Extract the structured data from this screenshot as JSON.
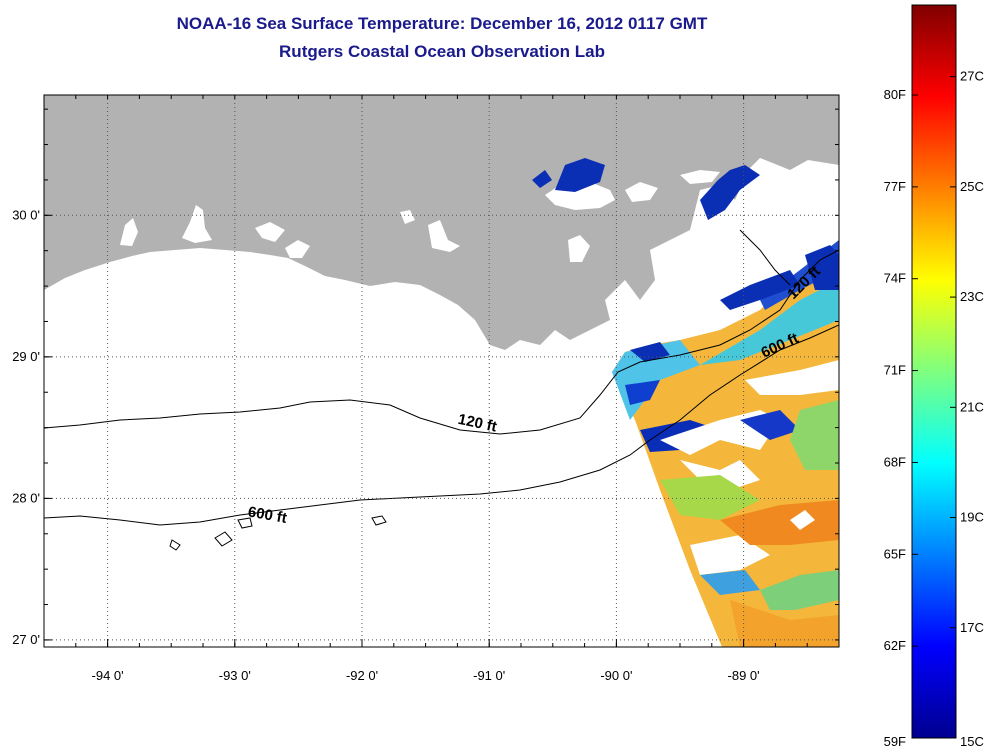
{
  "title": {
    "line1": "NOAA-16 Sea Surface Temperature:  December 16, 2012 0117 GMT",
    "line2": "Rutgers Coastal Ocean Observation Lab"
  },
  "map": {
    "lon_range": [
      -94.5,
      -88.25
    ],
    "lat_range": [
      26.95,
      30.85
    ],
    "lon_ticks": [
      {
        "value": -94,
        "label": "-94 0'"
      },
      {
        "value": -93,
        "label": "-93 0'"
      },
      {
        "value": -92,
        "label": "-92 0'"
      },
      {
        "value": -91,
        "label": "-91 0'"
      },
      {
        "value": -90,
        "label": "-90 0'"
      },
      {
        "value": -89,
        "label": "-89 0'"
      }
    ],
    "lat_ticks": [
      {
        "value": 30,
        "label": "30 0'"
      },
      {
        "value": 29,
        "label": "29 0'"
      },
      {
        "value": 28,
        "label": "28 0'"
      },
      {
        "value": 27,
        "label": "27 0'"
      }
    ],
    "contour_labels": [
      {
        "text": "120 ft",
        "lon": -91.1,
        "lat": 28.5,
        "angle": 12
      },
      {
        "text": "600 ft",
        "lon": -92.75,
        "lat": 27.85,
        "angle": 10
      },
      {
        "text": "120 ft",
        "lon": -88.5,
        "lat": 29.5,
        "angle": -45
      },
      {
        "text": "600 ft",
        "lon": -88.7,
        "lat": 29.05,
        "angle": -25
      }
    ],
    "colors": {
      "land": "#b2b2b2",
      "water": "#ffffff",
      "grid": "#555555"
    }
  },
  "colorbar": {
    "fahrenheit_ticks": [
      "80F",
      "77F",
      "74F",
      "71F",
      "68F",
      "65F",
      "62F",
      "59F"
    ],
    "celsius_ticks": [
      "27C",
      "25C",
      "23C",
      "21C",
      "19C",
      "17C",
      "15C"
    ],
    "celsius_range": [
      15,
      28.3
    ]
  }
}
